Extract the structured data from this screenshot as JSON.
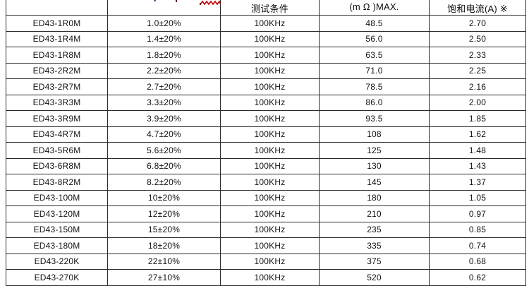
{
  "table": {
    "headers": [
      "",
      "",
      "测试条件",
      "(m Ω )MAX.",
      "饱和电流(A) ※"
    ],
    "rows": [
      [
        "ED43-1R0M",
        "1.0±20%",
        "100KHz",
        "48.5",
        "2.70"
      ],
      [
        "ED43-1R4M",
        "1.4±20%",
        "100KHz",
        "56.0",
        "2.50"
      ],
      [
        "ED43-1R8M",
        "1.8±20%",
        "100KHz",
        "63.5",
        "2.33"
      ],
      [
        "ED43-2R2M",
        "2.2±20%",
        "100KHz",
        "71.0",
        "2.25"
      ],
      [
        "ED43-2R7M",
        "2.7±20%",
        "100KHz",
        "78.5",
        "2.16"
      ],
      [
        "ED43-3R3M",
        "3.3±20%",
        "100KHz",
        "86.0",
        "2.00"
      ],
      [
        "ED43-3R9M",
        "3.9±20%",
        "100KHz",
        "93.5",
        "1.85"
      ],
      [
        "ED43-4R7M",
        "4.7±20%",
        "100KHz",
        "108",
        "1.62"
      ],
      [
        "ED43-5R6M",
        "5.6±20%",
        "100KHz",
        "125",
        "1.48"
      ],
      [
        "ED43-6R8M",
        "6.8±20%",
        "100KHz",
        "130",
        "1.43"
      ],
      [
        "ED43-8R2M",
        "8.2±20%",
        "100KHz",
        "145",
        "1.37"
      ],
      [
        "ED43-100M",
        "10±20%",
        "100KHz",
        "180",
        "1.05"
      ],
      [
        "ED43-120M",
        "12±20%",
        "100KHz",
        "210",
        "0.97"
      ],
      [
        "ED43-150M",
        "15±20%",
        "100KHz",
        "235",
        "0.85"
      ],
      [
        "ED43-180M",
        "18±20%",
        "100KHz",
        "335",
        "0.74"
      ],
      [
        "ED43-220K",
        "22±10%",
        "100KHz",
        "375",
        "0.68"
      ],
      [
        "ED43-270K",
        "27±10%",
        "100KHz",
        "520",
        "0.62"
      ]
    ]
  },
  "annotations": {
    "squiggle_color": "#c00000"
  }
}
